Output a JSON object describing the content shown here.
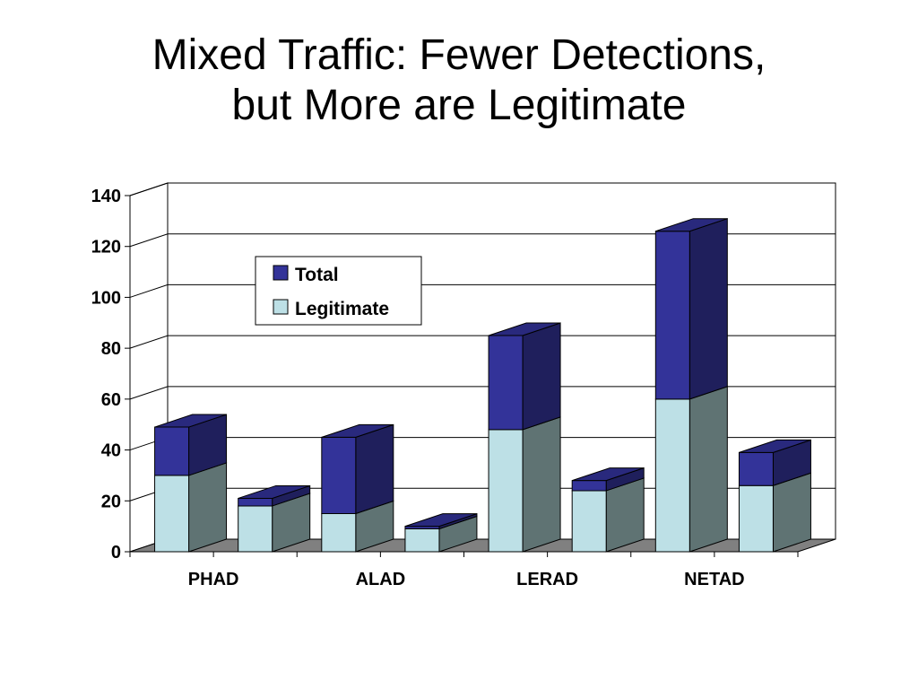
{
  "title": {
    "line1": "Mixed Traffic: Fewer Detections,",
    "line2": "but More are Legitimate"
  },
  "chart_data": {
    "type": "bar",
    "stacked_3d": true,
    "categories": [
      "PHAD",
      "",
      "ALAD",
      "",
      "LERAD",
      "",
      "NETAD",
      ""
    ],
    "series": [
      {
        "name": "Total",
        "values": [
          49,
          21,
          45,
          10,
          85,
          28,
          126,
          39
        ],
        "color_front": "#333399",
        "color_side": "#1f1f5c",
        "color_top": "#29297d"
      },
      {
        "name": "Legitimate",
        "values": [
          30,
          18,
          15,
          9,
          48,
          24,
          60,
          26
        ],
        "color_front": "#bde0e6",
        "color_side": "#5f7373",
        "color_top": "#a0c6cc"
      }
    ],
    "ylim": [
      0,
      140
    ],
    "yticks": [
      0,
      20,
      40,
      60,
      80,
      100,
      120,
      140
    ],
    "grid": true,
    "legend": "top-left inside plot"
  }
}
